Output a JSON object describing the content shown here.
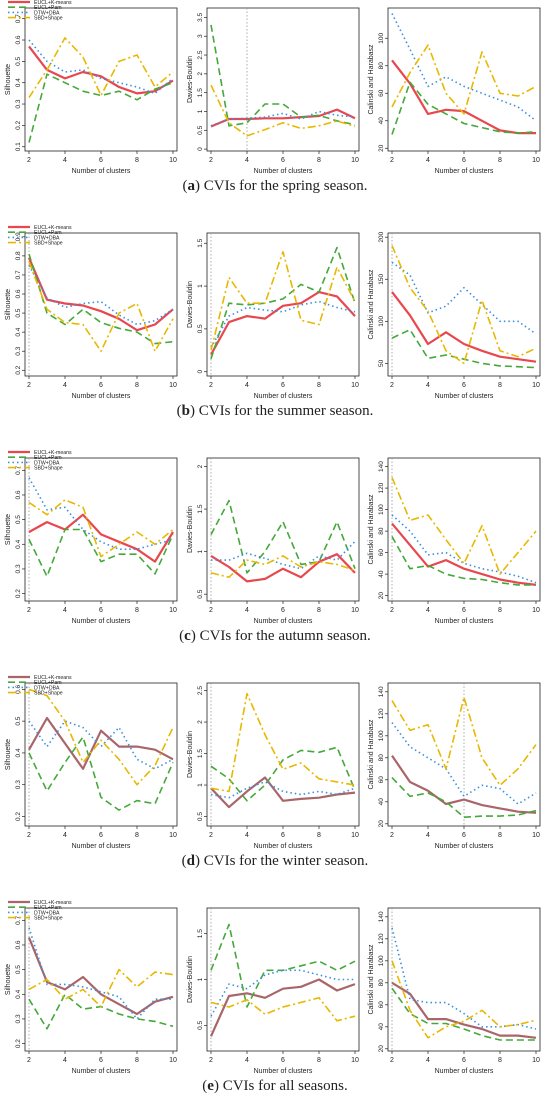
{
  "colors": {
    "eucl_kmeans": "#e8474e",
    "eucl_kmeans_alt": "#a8666a",
    "eucl_pam": "#44a83a",
    "dtw_dba": "#3b8fe0",
    "sbd_shape": "#e8b800",
    "dashed_ref": "#999999",
    "axis": "#222222"
  },
  "legend": [
    "EUCL+K-means",
    "EUCL+Pam",
    "DTW+DBA",
    "SBD+Shape"
  ],
  "rows": [
    {
      "label": "a",
      "caption": "CVIs for the spring season.",
      "kmeans_color": "eucl_kmeans",
      "panels": [
        {
          "ylabel": "Silhouette",
          "xlabel": "Number of clusters",
          "ylim": [
            0.08,
            0.75
          ],
          "yticks": [
            0.1,
            0.2,
            0.3,
            0.4,
            0.5,
            0.6,
            0.7
          ],
          "ref": null,
          "legend": true,
          "series": [
            [
              0.57,
              0.46,
              0.42,
              0.45,
              0.43,
              0.38,
              0.35,
              0.36,
              0.41
            ],
            [
              0.12,
              0.44,
              0.4,
              0.36,
              0.34,
              0.36,
              0.32,
              0.37,
              0.4
            ],
            [
              0.6,
              0.5,
              0.45,
              0.46,
              0.42,
              0.4,
              0.38,
              0.35,
              0.42
            ],
            [
              0.33,
              0.46,
              0.61,
              0.52,
              0.34,
              0.5,
              0.53,
              0.38,
              0.45
            ]
          ]
        },
        {
          "ylabel": "Davies-Bouldin",
          "xlabel": "Number of clusters",
          "ylim": [
            -0.05,
            3.75
          ],
          "yticks": [
            0,
            0.5,
            1,
            1.5,
            2,
            2.5,
            3,
            3.5
          ],
          "ref": 4,
          "legend": false,
          "series": [
            [
              0.6,
              0.8,
              0.8,
              0.82,
              0.82,
              0.85,
              0.88,
              1.05,
              0.82
            ],
            [
              3.3,
              0.62,
              0.7,
              1.2,
              1.2,
              0.85,
              0.9,
              0.75,
              0.65
            ],
            [
              0.62,
              0.8,
              0.82,
              0.85,
              0.95,
              0.8,
              1.0,
              0.9,
              0.85
            ],
            [
              1.7,
              0.7,
              0.35,
              0.52,
              0.7,
              0.55,
              0.62,
              0.75,
              0.6
            ]
          ]
        },
        {
          "ylabel": "Calinski and Harabasz",
          "xlabel": "Number of clusters",
          "ylim": [
            18,
            122
          ],
          "yticks": [
            20,
            40,
            60,
            80,
            100
          ],
          "ref": null,
          "legend": false,
          "series": [
            [
              84,
              67,
              45,
              48,
              47,
              40,
              33,
              31,
              31
            ],
            [
              30,
              68,
              52,
              45,
              38,
              35,
              32,
              31,
              32
            ],
            [
              118,
              92,
              65,
              72,
              65,
              60,
              55,
              50,
              40
            ],
            [
              50,
              75,
              95,
              60,
              45,
              90,
              60,
              58,
              65
            ]
          ]
        }
      ]
    },
    {
      "label": "b",
      "caption": "CVIs for the summer season.",
      "kmeans_color": "eucl_kmeans",
      "panels": [
        {
          "ylabel": "Silhouette",
          "xlabel": "Number of clusters",
          "ylim": [
            0.17,
            0.92
          ],
          "yticks": [
            0.2,
            0.3,
            0.4,
            0.5,
            0.6,
            0.7,
            0.8,
            0.9
          ],
          "ref": 2,
          "legend": true,
          "series": [
            [
              0.79,
              0.57,
              0.55,
              0.54,
              0.51,
              0.47,
              0.41,
              0.44,
              0.52
            ],
            [
              0.81,
              0.5,
              0.44,
              0.52,
              0.45,
              0.42,
              0.4,
              0.34,
              0.35
            ],
            [
              0.75,
              0.58,
              0.53,
              0.55,
              0.56,
              0.49,
              0.44,
              0.46,
              0.52
            ],
            [
              0.77,
              0.52,
              0.45,
              0.44,
              0.3,
              0.5,
              0.55,
              0.3,
              0.47
            ]
          ]
        },
        {
          "ylabel": "Davies-Bouldin",
          "xlabel": "Number of clusters",
          "ylim": [
            -0.05,
            1.62
          ],
          "yticks": [
            0,
            0.5,
            1,
            1.5
          ],
          "ref": 2,
          "legend": false,
          "series": [
            [
              0.2,
              0.58,
              0.65,
              0.62,
              0.77,
              0.8,
              0.93,
              0.88,
              0.65
            ],
            [
              0.15,
              0.8,
              0.78,
              0.8,
              0.85,
              1.02,
              0.93,
              1.45,
              0.8
            ],
            [
              0.28,
              0.65,
              0.75,
              0.72,
              0.7,
              0.78,
              0.82,
              0.75,
              0.7
            ],
            [
              0.25,
              1.1,
              0.8,
              0.8,
              1.4,
              0.6,
              0.55,
              1.22,
              0.82
            ]
          ]
        },
        {
          "ylabel": "Calinski and Harabasz",
          "xlabel": "Number of clusters",
          "ylim": [
            35,
            205
          ],
          "yticks": [
            50,
            100,
            150,
            200
          ],
          "ref": 2,
          "legend": false,
          "series": [
            [
              135,
              107,
              73,
              87,
              73,
              65,
              58,
              55,
              52
            ],
            [
              80,
              90,
              56,
              60,
              55,
              50,
              47,
              46,
              45
            ],
            [
              170,
              155,
              110,
              118,
              140,
              120,
              100,
              100,
              85
            ],
            [
              190,
              140,
              112,
              65,
              50,
              125,
              65,
              58,
              68
            ]
          ]
        }
      ]
    },
    {
      "label": "c",
      "caption": "CVIs for the autumn season.",
      "kmeans_color": "eucl_kmeans",
      "panels": [
        {
          "ylabel": "Silhouette",
          "xlabel": "Number of clusters",
          "ylim": [
            0.17,
            0.75
          ],
          "yticks": [
            0.2,
            0.3,
            0.4,
            0.5,
            0.6,
            0.7
          ],
          "ref": 2,
          "legend": true,
          "series": [
            [
              0.45,
              0.49,
              0.46,
              0.52,
              0.44,
              0.41,
              0.38,
              0.33,
              0.45
            ],
            [
              0.42,
              0.27,
              0.46,
              0.46,
              0.33,
              0.36,
              0.36,
              0.28,
              0.44
            ],
            [
              0.67,
              0.54,
              0.55,
              0.46,
              0.41,
              0.38,
              0.38,
              0.4,
              0.42
            ],
            [
              0.57,
              0.52,
              0.58,
              0.55,
              0.35,
              0.4,
              0.45,
              0.4,
              0.46
            ]
          ]
        },
        {
          "ylabel": "Davies-Bouldin",
          "xlabel": "Number of clusters",
          "ylim": [
            0.42,
            2.1
          ],
          "yticks": [
            0.5,
            1,
            1.5,
            2
          ],
          "ref": 2,
          "legend": false,
          "series": [
            [
              0.95,
              0.82,
              0.65,
              0.68,
              0.8,
              0.7,
              0.88,
              0.97,
              0.75
            ],
            [
              1.2,
              1.6,
              0.75,
              1.0,
              1.35,
              0.85,
              0.88,
              1.35,
              0.8
            ],
            [
              0.9,
              0.9,
              0.98,
              0.92,
              0.85,
              0.8,
              0.95,
              0.9,
              1.12
            ],
            [
              0.75,
              0.7,
              0.9,
              0.85,
              0.95,
              0.82,
              0.88,
              0.85,
              0.78
            ]
          ]
        },
        {
          "ylabel": "Calinski and Harabasz",
          "xlabel": "Number of clusters",
          "ylim": [
            15,
            148
          ],
          "yticks": [
            20,
            40,
            60,
            80,
            100,
            120,
            140
          ],
          "ref": 2,
          "legend": false,
          "series": [
            [
              87,
              67,
              47,
              53,
              45,
              40,
              35,
              32,
              30
            ],
            [
              75,
              45,
              48,
              40,
              36,
              35,
              32,
              30,
              30
            ],
            [
              95,
              80,
              58,
              60,
              50,
              45,
              42,
              38,
              32
            ],
            [
              130,
              90,
              95,
              72,
              50,
              85,
              40,
              60,
              80
            ]
          ]
        }
      ]
    },
    {
      "label": "d",
      "caption": "CVIs for the winter season.",
      "kmeans_color": "eucl_kmeans_alt",
      "panels": [
        {
          "ylabel": "Silhouette",
          "xlabel": "Number of clusters",
          "ylim": [
            0.17,
            0.62
          ],
          "yticks": [
            0.2,
            0.3,
            0.4,
            0.5,
            0.6
          ],
          "ref": 2,
          "legend": true,
          "series": [
            [
              0.41,
              0.51,
              0.43,
              0.35,
              0.47,
              0.42,
              0.42,
              0.41,
              0.38
            ],
            [
              0.4,
              0.28,
              0.37,
              0.45,
              0.26,
              0.22,
              0.25,
              0.24,
              0.37
            ],
            [
              0.5,
              0.42,
              0.5,
              0.48,
              0.42,
              0.48,
              0.38,
              0.35,
              0.38
            ],
            [
              0.6,
              0.58,
              0.5,
              0.37,
              0.44,
              0.38,
              0.3,
              0.36,
              0.48
            ]
          ]
        },
        {
          "ylabel": "Davies-Bouldin",
          "xlabel": "Number of clusters",
          "ylim": [
            0.35,
            2.62
          ],
          "yticks": [
            0.5,
            1,
            1.5,
            2,
            2.5
          ],
          "ref": 2,
          "legend": false,
          "series": [
            [
              0.95,
              0.65,
              0.9,
              1.12,
              0.75,
              0.78,
              0.8,
              0.85,
              0.88
            ],
            [
              1.3,
              1.1,
              0.75,
              1.0,
              1.4,
              1.55,
              1.52,
              1.6,
              0.92
            ],
            [
              0.85,
              0.8,
              0.95,
              1.05,
              0.9,
              0.85,
              0.9,
              0.85,
              0.95
            ],
            [
              0.95,
              0.9,
              2.45,
              1.8,
              1.25,
              1.35,
              1.1,
              1.05,
              1.0
            ]
          ]
        },
        {
          "ylabel": "Calinski and Harabasz",
          "xlabel": "Number of clusters",
          "ylim": [
            18,
            148
          ],
          "yticks": [
            20,
            40,
            60,
            80,
            100,
            120,
            140
          ],
          "ref": 6,
          "legend": false,
          "series": [
            [
              82,
              58,
              50,
              38,
              42,
              37,
              34,
              31,
              30
            ],
            [
              62,
              45,
              48,
              40,
              26,
              27,
              27,
              28,
              32
            ],
            [
              112,
              90,
              80,
              70,
              45,
              55,
              52,
              38,
              48
            ],
            [
              132,
              105,
              110,
              70,
              135,
              80,
              55,
              70,
              92
            ]
          ]
        }
      ]
    },
    {
      "label": "e",
      "caption": "CVIs for all seasons.",
      "kmeans_color": "eucl_kmeans_alt",
      "panels": [
        {
          "ylabel": "Silhouette",
          "xlabel": "Number of clusters",
          "ylim": [
            0.17,
            0.75
          ],
          "yticks": [
            0.2,
            0.3,
            0.4,
            0.5,
            0.6,
            0.7
          ],
          "ref": 2,
          "legend": true,
          "series": [
            [
              0.63,
              0.45,
              0.42,
              0.47,
              0.4,
              0.36,
              0.32,
              0.37,
              0.39
            ],
            [
              0.38,
              0.26,
              0.4,
              0.34,
              0.35,
              0.32,
              0.3,
              0.29,
              0.27
            ],
            [
              0.67,
              0.44,
              0.44,
              0.43,
              0.41,
              0.39,
              0.3,
              0.38,
              0.38
            ],
            [
              0.42,
              0.46,
              0.38,
              0.42,
              0.35,
              0.5,
              0.43,
              0.49,
              0.48
            ]
          ]
        },
        {
          "ylabel": "Davies-Bouldin",
          "xlabel": "Number of clusters",
          "ylim": [
            0.22,
            1.78
          ],
          "yticks": [
            0.5,
            1,
            1.5
          ],
          "ref": 2,
          "legend": false,
          "series": [
            [
              0.38,
              0.82,
              0.85,
              0.8,
              0.9,
              0.92,
              1.0,
              0.88,
              0.95
            ],
            [
              1.1,
              1.6,
              0.7,
              1.1,
              1.1,
              1.15,
              1.2,
              1.1,
              1.2
            ],
            [
              0.6,
              0.95,
              0.9,
              1.05,
              1.1,
              1.1,
              1.05,
              1.0,
              1.0
            ],
            [
              0.75,
              0.7,
              0.78,
              0.62,
              0.7,
              0.75,
              0.8,
              0.55,
              0.6
            ]
          ]
        },
        {
          "ylabel": "Calinski and Harabasz",
          "xlabel": "Number of clusters",
          "ylim": [
            18,
            148
          ],
          "yticks": [
            20,
            40,
            60,
            80,
            100,
            120,
            140
          ],
          "ref": 2,
          "legend": false,
          "series": [
            [
              80,
              70,
              47,
              47,
              42,
              38,
              32,
              32,
              30
            ],
            [
              75,
              52,
              43,
              43,
              38,
              32,
              28,
              28,
              28
            ],
            [
              130,
              65,
              62,
              62,
              52,
              40,
              40,
              42,
              38
            ],
            [
              100,
              55,
              30,
              40,
              45,
              55,
              40,
              42,
              46
            ]
          ]
        }
      ]
    }
  ],
  "chart_data": [
    {
      "type": "line",
      "panel": "a-silhouette",
      "x": [
        2,
        3,
        4,
        5,
        6,
        7,
        8,
        9,
        10
      ]
    },
    {
      "type": "line",
      "panel": "a-davies-bouldin",
      "x": [
        2,
        3,
        4,
        5,
        6,
        7,
        8,
        9,
        10
      ]
    },
    {
      "type": "line",
      "panel": "a-calinski-harabasz",
      "x": [
        2,
        3,
        4,
        5,
        6,
        7,
        8,
        9,
        10
      ]
    }
  ]
}
